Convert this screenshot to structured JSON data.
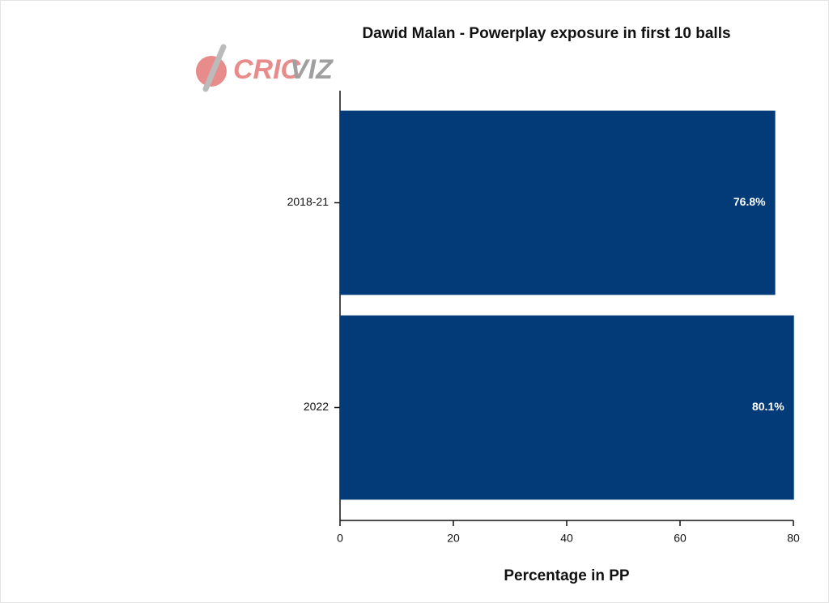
{
  "chart_data": {
    "type": "barh",
    "title": "Dawid Malan - Powerplay exposure in first 10 balls",
    "logo": [
      "CRIC",
      "VIZ"
    ],
    "x_label": "Percentage in PP",
    "categories": [
      "2018-21",
      "2022"
    ],
    "values": [
      76.8,
      80.1
    ],
    "value_labels": [
      "76.8%",
      "80.1%"
    ],
    "color": "#033a78",
    "xlim": [
      0,
      80
    ],
    "xticks": [
      0,
      20,
      40,
      60,
      80
    ]
  }
}
